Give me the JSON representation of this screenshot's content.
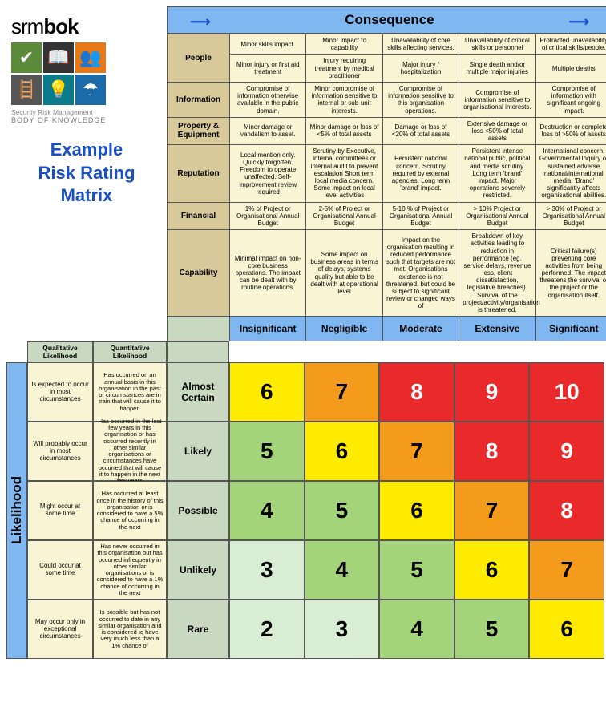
{
  "logo": {
    "brand": "srm",
    "brand_bold": "bok",
    "sub1": "Security Risk Management",
    "sub2": "BODY OF KNOWLEDGE"
  },
  "title": "Example Risk Rating Matrix",
  "headers": {
    "consequence": "Consequence",
    "likelihood": "Likelihood"
  },
  "consequence_categories": [
    {
      "name": "People",
      "span": 2,
      "cells": [
        [
          "Minor skills impact.",
          "Minor impact to capability",
          "Unavailability of core skills affecting services.",
          "Unavailability of critical skills or personnel",
          "Protracted unavailability of critical skills/people."
        ],
        [
          "Minor injury or first aid treatment",
          "Injury requiring treatment by medical practitioner",
          "Major injury / hospitalization",
          "Single death and/or multiple major injuries",
          "Multiple deaths"
        ]
      ]
    },
    {
      "name": "Information",
      "span": 1,
      "cells": [
        [
          "Compromise of information otherwise available in the public domain.",
          "Minor compromise of information sensitive to internal or sub-unit interests.",
          "Compromise of information sensitive to this organisation operations.",
          "Compromise of information sensitive to organisational interests.",
          "Compromise of information with significant ongoing impact."
        ]
      ]
    },
    {
      "name": "Property & Equipment",
      "span": 1,
      "cells": [
        [
          "Minor damage or vandalism to asset.",
          "Minor damage or loss of <5% of total assets",
          "Damage or loss of <20% of total assets",
          "Extensive damage or loss <50% of total assets",
          "Destruction or complete loss of >50% of assets"
        ]
      ]
    },
    {
      "name": "Reputation",
      "span": 1,
      "cells": [
        [
          "Local mention only. Quickly forgotten. Freedom to operate unaffected. Self-improvement review required",
          "Scrutiny by Executive, internal committees or internal audit to prevent escalation Short term local media concern. Some impact on local level activities",
          "Persistent national concern. Scrutiny required by external agencies. Long term 'brand' impact.",
          "Persistent intense national public, political and media scrutiny. Long term 'brand' impact. Major operations severely restricted.",
          "International concern, Governmental Inquiry or sustained adverse national/international media. 'Brand' significantly affects organisational abilities."
        ]
      ]
    },
    {
      "name": "Financial",
      "span": 1,
      "cells": [
        [
          "1% of Project or Organisational Annual Budget",
          "2-5% of Project or Organisational Annual Budget",
          "5-10 % of Project or Organisational Annual Budget",
          "> 10% Project or Organisational Annual Budget",
          "> 30% of Project or Organisational Annual Budget"
        ]
      ]
    },
    {
      "name": "Capability",
      "span": 1,
      "cells": [
        [
          "Minimal impact on non-core business operations. The impact can be dealt with by routine operations.",
          "Some impact on business areas in terms of delays, systems quality but able to be dealt with at operational level",
          "Impact on the organisation resulting in reduced performance such that targets are not met. Organisations existence is not threatened, but could be subject to significant review or changed ways of",
          "Breakdown of key activities leading to reduction in performance (eg. service delays, revenue loss, client dissatisfaction, legislative breaches). Survival of the project/activity/organisation is threatened.",
          "Critical failure(s) preventing core activities from being performed. The impact threatens the survival of the project or the organisation itself."
        ]
      ]
    }
  ],
  "consequence_cols": [
    "Insignificant",
    "Negligible",
    "Moderate",
    "Extensive",
    "Significant"
  ],
  "likelihood_headers": {
    "qual": "Qualitative Likelihood",
    "quant": "Quantitative Likelihood"
  },
  "likelihood_rows": [
    {
      "label": "Almost Certain",
      "qual": "Is expected to occur in most circumstances",
      "quant": "Has occurred on an annual basis in this organisation in the past or circumstances are in train that will cause it to happen"
    },
    {
      "label": "Likely",
      "qual": "Will probably occur in most circumstances",
      "quant": "Has occurred in the last few years in this organisation or has occurred recently in other similar organisations or circumstances have occurred that will cause it to happen in the next few years"
    },
    {
      "label": "Possible",
      "qual": "Might occur at some time",
      "quant": "Has occurred at least once in the history of this organisation or is considered to have a 5% chance of occurring in the next"
    },
    {
      "label": "Unlikely",
      "qual": "Could occur at some time",
      "quant": "Has never occurred in this organisation but has occurred infrequently in other similar organisations or is considered to have a 1% chance of occurring in the next"
    },
    {
      "label": "Rare",
      "qual": "May occur only in exceptional circumstances",
      "quant": "Is possible but has not occurred to date in any similar organisation and is considered to have very much less than a 1% chance of"
    }
  ],
  "matrix_values": [
    [
      6,
      7,
      8,
      9,
      10
    ],
    [
      5,
      6,
      7,
      8,
      9
    ],
    [
      4,
      5,
      6,
      7,
      8
    ],
    [
      3,
      4,
      5,
      6,
      7
    ],
    [
      2,
      3,
      4,
      5,
      6
    ]
  ],
  "colors": {
    "2": {
      "bg": "#d9edd4",
      "fg": "#000"
    },
    "3": {
      "bg": "#d9edd4",
      "fg": "#000"
    },
    "4": {
      "bg": "#a3d47a",
      "fg": "#000"
    },
    "5": {
      "bg": "#a3d47a",
      "fg": "#000"
    },
    "6": {
      "bg": "#ffeb00",
      "fg": "#000"
    },
    "7": {
      "bg": "#f59b1c",
      "fg": "#000"
    },
    "8": {
      "bg": "#ea2a2a",
      "fg": "#fff"
    },
    "9": {
      "bg": "#ea2a2a",
      "fg": "#fff"
    },
    "10": {
      "bg": "#ea2a2a",
      "fg": "#fff"
    }
  }
}
